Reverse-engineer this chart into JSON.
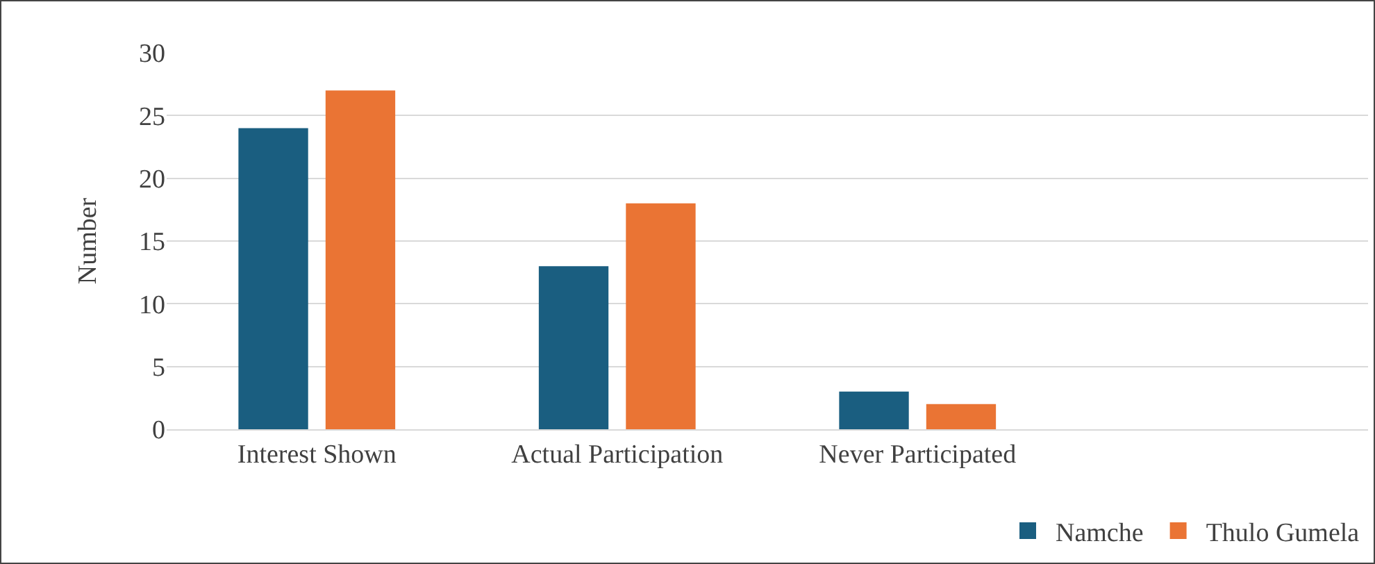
{
  "chart_data": {
    "type": "bar",
    "ylabel": "Number",
    "categories": [
      "Interest Shown",
      "Actual Participation",
      "Never Participated",
      null
    ],
    "series": [
      {
        "name": "Namche",
        "color": "#1a5e80",
        "values": [
          24,
          13,
          3,
          null
        ]
      },
      {
        "name": "Thulo Gumela",
        "color": "#ea7434",
        "values": [
          27,
          18,
          2,
          null
        ]
      }
    ],
    "ylim": [
      0,
      30
    ],
    "yticks": [
      0,
      5,
      10,
      15,
      20,
      25,
      30
    ],
    "grid": "y",
    "legend": "bottom right"
  }
}
